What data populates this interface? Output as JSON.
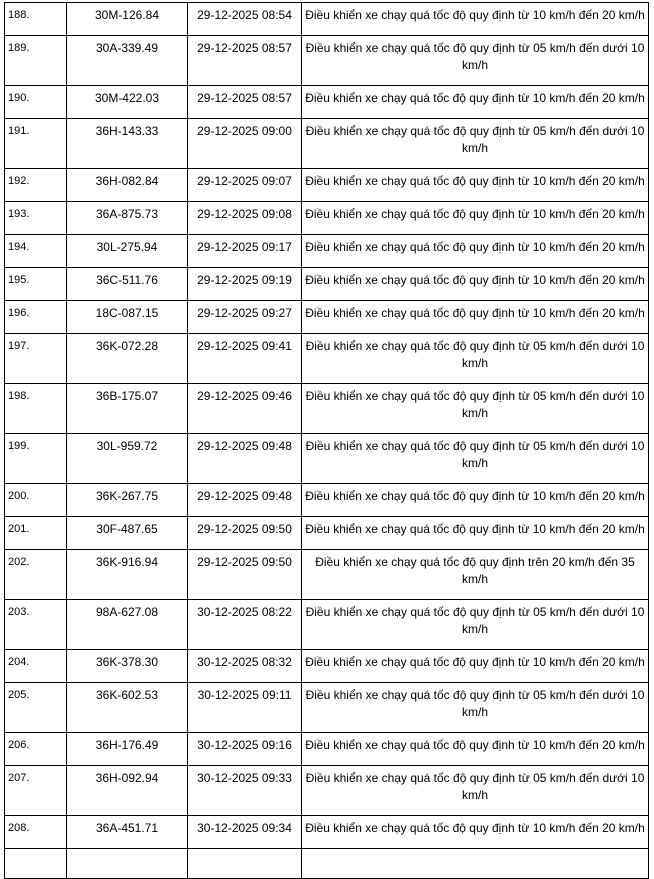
{
  "table": {
    "rows": [
      {
        "no": "188.",
        "plate": "30M-126.84",
        "time": "29-12-2025 08:54",
        "violation": "Điều khiển xe chạy quá tốc độ quy định từ 10 km/h đến 20 km/h"
      },
      {
        "no": "189.",
        "plate": "30A-339.49",
        "time": "29-12-2025 08:57",
        "violation": "Điều khiển xe chạy quá tốc độ quy định từ 05 km/h đến dưới 10 km/h"
      },
      {
        "no": "190.",
        "plate": "30M-422.03",
        "time": "29-12-2025 08:57",
        "violation": "Điều khiển xe chạy quá tốc độ quy định từ 10 km/h đến 20 km/h"
      },
      {
        "no": "191.",
        "plate": "36H-143.33",
        "time": "29-12-2025 09:00",
        "violation": "Điều khiển xe chạy quá tốc độ quy định từ 05 km/h đến dưới 10 km/h"
      },
      {
        "no": "192.",
        "plate": "36H-082.84",
        "time": "29-12-2025 09:07",
        "violation": "Điều khiển xe chạy quá tốc độ quy định từ 10 km/h đến 20 km/h"
      },
      {
        "no": "193.",
        "plate": "36A-875.73",
        "time": "29-12-2025 09:08",
        "violation": "Điều khiển xe chạy quá tốc độ quy định từ 10 km/h đến 20 km/h"
      },
      {
        "no": "194.",
        "plate": "30L-275.94",
        "time": "29-12-2025 09:17",
        "violation": "Điều khiển xe chạy quá tốc độ quy định từ 10 km/h đến 20 km/h"
      },
      {
        "no": "195.",
        "plate": "36C-511.76",
        "time": "29-12-2025 09:19",
        "violation": "Điều khiển xe chạy quá tốc độ quy định từ 10 km/h đến 20 km/h"
      },
      {
        "no": "196.",
        "plate": "18C-087.15",
        "time": "29-12-2025 09:27",
        "violation": "Điều khiển xe chạy quá tốc độ quy định từ 10 km/h đến 20 km/h"
      },
      {
        "no": "197.",
        "plate": "36K-072.28",
        "time": "29-12-2025 09:41",
        "violation": "Điều khiển xe chạy quá tốc độ quy định từ 05 km/h đến dưới 10 km/h"
      },
      {
        "no": "198.",
        "plate": "36B-175.07",
        "time": "29-12-2025 09:46",
        "violation": "Điều khiển xe chạy quá tốc độ quy định từ 05 km/h đến dưới 10 km/h"
      },
      {
        "no": "199.",
        "plate": "30L-959.72",
        "time": "29-12-2025 09:48",
        "violation": "Điều khiển xe chạy quá tốc độ quy định từ 05 km/h đến dưới 10 km/h"
      },
      {
        "no": "200.",
        "plate": "36K-267.75",
        "time": "29-12-2025 09:48",
        "violation": "Điều khiển xe chạy quá tốc độ quy định từ 10 km/h đến 20 km/h"
      },
      {
        "no": "201.",
        "plate": "30F-487.65",
        "time": "29-12-2025 09:50",
        "violation": "Điều khiển xe chạy quá tốc độ quy định từ 10 km/h đến 20 km/h"
      },
      {
        "no": "202.",
        "plate": "36K-916.94",
        "time": "29-12-2025 09:50",
        "violation": "Điều khiển xe chạy quá tốc độ quy định trên 20 km/h đến 35 km/h"
      },
      {
        "no": "203.",
        "plate": "98A-627.08",
        "time": "30-12-2025 08:22",
        "violation": "Điều khiển xe chạy quá tốc độ quy định từ 05 km/h đến dưới 10 km/h"
      },
      {
        "no": "204.",
        "plate": "36K-378.30",
        "time": "30-12-2025 08:32",
        "violation": "Điều khiển xe chạy quá tốc độ quy định từ 10 km/h đến 20 km/h"
      },
      {
        "no": "205.",
        "plate": "36K-602.53",
        "time": "30-12-2025 09:11",
        "violation": "Điều khiển xe chạy quá tốc độ quy định từ 05 km/h đến dưới 10 km/h"
      },
      {
        "no": "206.",
        "plate": "36H-176.49",
        "time": "30-12-2025 09:16",
        "violation": "Điều khiển xe chạy quá tốc độ quy định từ 10 km/h đến 20 km/h"
      },
      {
        "no": "207.",
        "plate": "36H-092.94",
        "time": "30-12-2025 09:33",
        "violation": "Điều khiển xe chạy quá tốc độ quy định từ 05 km/h đến dưới 10 km/h"
      },
      {
        "no": "208.",
        "plate": "36A-451.71",
        "time": "30-12-2025 09:34",
        "violation": "Điều khiển xe chạy quá tốc độ quy định từ 10 km/h đến 20 km/h"
      }
    ]
  }
}
